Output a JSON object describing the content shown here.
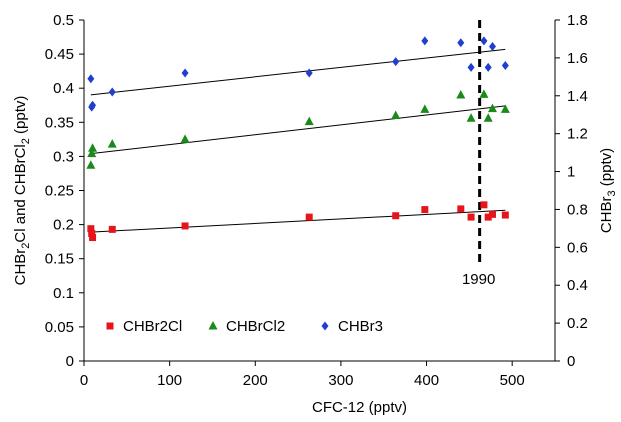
{
  "chart_data": {
    "type": "scatter",
    "xlabel": "CFC-12 (pptv)",
    "ylabel_left_main": "CHBr",
    "ylabel_left_sub1": "2",
    "ylabel_left_mid": "Cl and CHBrCl",
    "ylabel_left_sub2": "2",
    "ylabel_left_end": " (pptv)",
    "ylabel_right_main": "CHBr",
    "ylabel_right_sub": "3",
    "ylabel_right_end": " (pptv)",
    "xlim": [
      0,
      550
    ],
    "ylim_left": [
      0,
      0.5
    ],
    "ylim_right": [
      0,
      1.8
    ],
    "x_ticks": [
      "0",
      "100",
      "200",
      "300",
      "400",
      "500"
    ],
    "y_left_ticks": [
      "0",
      "0.05",
      "0.1",
      "0.15",
      "0.2",
      "0.25",
      "0.3",
      "0.35",
      "0.4",
      "0.45",
      "0.5"
    ],
    "y_right_ticks": [
      "0",
      "0.2",
      "0.4",
      "0.6",
      "0.8",
      "1",
      "1.2",
      "1.4",
      "1.6",
      "1.8"
    ],
    "vline": {
      "x": 462,
      "label": "1990"
    },
    "legend_position": "bottom-left",
    "series": [
      {
        "name": "CHBr2Cl",
        "axis": "left",
        "marker": "square",
        "color": "#e8141b",
        "x": [
          8,
          9,
          10,
          33,
          118,
          263,
          364,
          398,
          440,
          452,
          467,
          472,
          477,
          492
        ],
        "y": [
          0.194,
          0.187,
          0.181,
          0.193,
          0.198,
          0.211,
          0.213,
          0.222,
          0.223,
          0.211,
          0.229,
          0.211,
          0.215,
          0.214
        ],
        "trend": [
          [
            8,
            0.189
          ],
          [
            492,
            0.221
          ]
        ]
      },
      {
        "name": "CHBrCl2",
        "axis": "left",
        "marker": "triangle",
        "color": "#1a8a1a",
        "x": [
          8,
          9,
          10,
          33,
          118,
          263,
          364,
          398,
          440,
          452,
          467,
          472,
          477,
          492
        ],
        "y": [
          0.287,
          0.304,
          0.312,
          0.318,
          0.325,
          0.351,
          0.36,
          0.369,
          0.39,
          0.356,
          0.391,
          0.356,
          0.37,
          0.369
        ],
        "trend": [
          [
            8,
            0.304
          ],
          [
            492,
            0.374
          ]
        ]
      },
      {
        "name": "CHBr3",
        "axis": "right",
        "marker": "diamond",
        "color": "#1f3fd1",
        "x": [
          8,
          9,
          10,
          33,
          118,
          263,
          364,
          398,
          440,
          452,
          467,
          472,
          477,
          492
        ],
        "y": [
          1.49,
          1.34,
          1.35,
          1.42,
          1.52,
          1.52,
          1.58,
          1.69,
          1.68,
          1.55,
          1.69,
          1.55,
          1.66,
          1.56
        ],
        "trend": [
          [
            8,
            1.405
          ],
          [
            492,
            1.645
          ]
        ]
      }
    ]
  }
}
